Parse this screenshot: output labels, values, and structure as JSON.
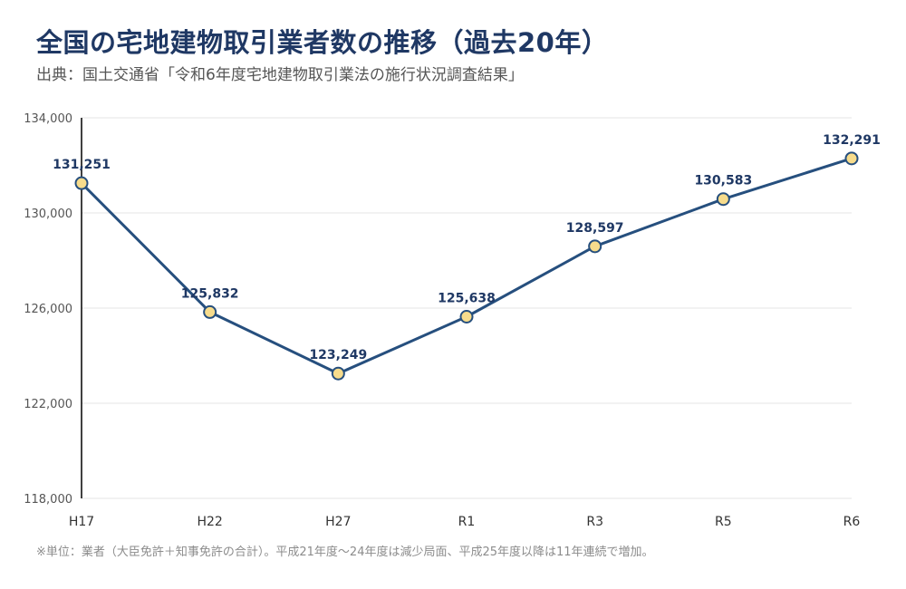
{
  "header": {
    "title": "全国の宅地建物取引業者数の推移（過去20年）",
    "subtitle": "出典：国土交通省「令和6年度宅地建物取引業法の施行状況調査結果」"
  },
  "footnote": "※単位：業者（大臣免許＋知事免許の合計）。平成21年度〜24年度は減少局面、平成25年度以降は11年連続で増加。",
  "colors": {
    "line": "#264f7e",
    "marker_fill": "#f7dc8c",
    "marker_stroke": "#264f7e",
    "grid": "#e6e6e6",
    "axis": "#000000",
    "label": "#1f3864"
  },
  "chart_data": {
    "type": "line",
    "categories": [
      "H17",
      "H22",
      "H27",
      "R1",
      "R3",
      "R5",
      "R6"
    ],
    "values": [
      131251,
      125832,
      123249,
      125638,
      128597,
      130583,
      132291
    ],
    "data_labels": [
      "131,251",
      "125,832",
      "123,249",
      "125,638",
      "128,597",
      "130,583",
      "132,291"
    ],
    "ylim": [
      118000,
      134000
    ],
    "yticks": [
      118000,
      122000,
      126000,
      130000,
      134000
    ],
    "ytick_labels": [
      "118,000",
      "122,000",
      "126,000",
      "130,000",
      "134,000"
    ],
    "grid": true,
    "xlabel": "",
    "ylabel": ""
  }
}
